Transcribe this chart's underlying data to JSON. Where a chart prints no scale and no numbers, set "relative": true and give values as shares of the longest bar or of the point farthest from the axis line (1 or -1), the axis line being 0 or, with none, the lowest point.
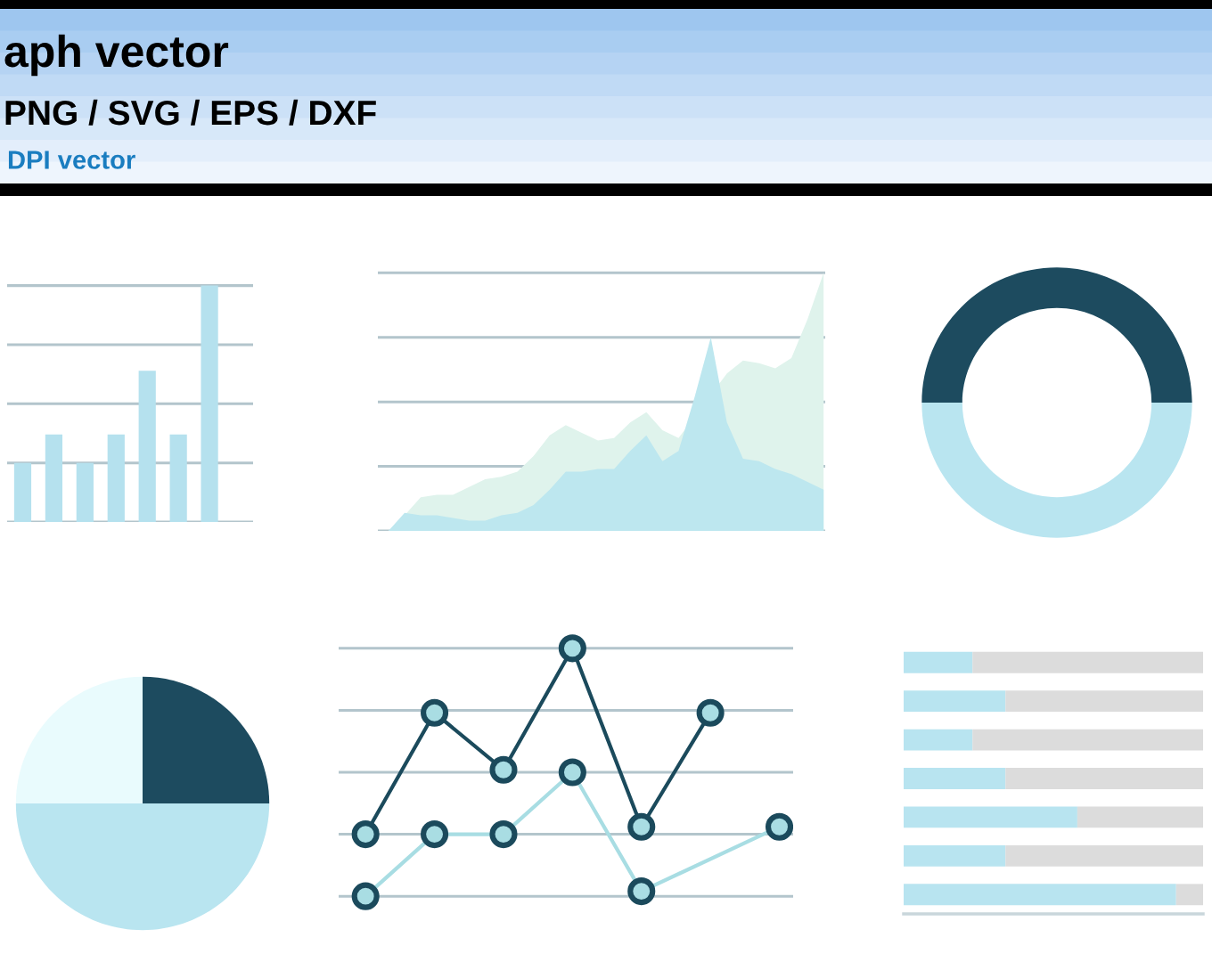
{
  "chart_data": [
    {
      "type": "other",
      "title": "aph vector",
      "subtitle": "PNG / SVG / EPS / DXF",
      "annotations": [
        "DPI vector"
      ]
    },
    {
      "type": "bar",
      "relative": true,
      "categories": [
        null,
        null,
        null,
        null,
        null,
        null,
        null
      ],
      "values": [
        0.25,
        0.37,
        0.25,
        0.37,
        0.64,
        0.37,
        1
      ],
      "color": "#b5e1ee",
      "grid": "y"
    },
    {
      "type": "area",
      "relative": true,
      "categories": [
        null,
        null,
        null,
        null,
        null,
        null,
        null,
        null,
        null,
        null,
        null,
        null,
        null,
        null,
        null,
        null,
        null,
        null,
        null,
        null,
        null,
        null,
        null,
        null,
        null,
        null,
        null,
        null
      ],
      "series": [
        {
          "color": "#dff3ec",
          "values": [
            0,
            0.06,
            0.13,
            0.14,
            0.14,
            0.17,
            0.2,
            0.21,
            0.23,
            0.29,
            0.37,
            0.41,
            0.38,
            0.35,
            0.36,
            0.42,
            0.46,
            0.39,
            0.36,
            null,
            null,
            0.61,
            0.66,
            0.65,
            0.63,
            0.67,
            0.82,
            1
          ]
        },
        {
          "color": "#bde7ef",
          "values": [
            0,
            0.07,
            0.06,
            0.06,
            0.05,
            0.04,
            0.04,
            0.06,
            0.07,
            0.1,
            0.16,
            0.23,
            0.23,
            0.24,
            0.24,
            0.31,
            0.37,
            0.27,
            0.31,
            0.52,
            0.75,
            0.42,
            0.28,
            0.27,
            0.24,
            0.22,
            0.19,
            0.16
          ]
        }
      ],
      "grid": "y"
    },
    {
      "type": "donut",
      "categories": [
        null,
        null
      ],
      "values": [
        50,
        50
      ],
      "colors": [
        "#1d4b5f",
        "#b9e5f0"
      ]
    },
    {
      "type": "pie",
      "categories": [
        null,
        null,
        null
      ],
      "values": [
        25,
        25,
        50
      ],
      "colors": [
        "#1d4b5f",
        "#e9fbfd",
        "#b9e5f0"
      ]
    },
    {
      "type": "line",
      "relative": true,
      "categories": [
        null,
        null,
        null,
        null,
        null,
        null,
        null
      ],
      "series": [
        {
          "color": "#1b4a5c",
          "values": [
            0.25,
            0.74,
            0.51,
            1,
            0.28,
            0.74,
            null
          ]
        },
        {
          "color": "#a8dde3",
          "values": [
            0,
            0.25,
            0.25,
            0.5,
            0.02,
            null,
            0.28
          ]
        }
      ],
      "grid": "y",
      "marker": "circle",
      "line_style": "solid"
    },
    {
      "type": "bar",
      "orientation": "horizontal",
      "stacked": true,
      "relative": true,
      "categories": [
        null,
        null,
        null,
        null,
        null,
        null,
        null
      ],
      "series": [
        {
          "color": "#b8e4f0",
          "values": [
            0.23,
            0.34,
            0.23,
            0.34,
            0.58,
            0.34,
            0.91
          ]
        },
        {
          "color": "#dcdcdc",
          "values": [
            0.77,
            0.66,
            0.77,
            0.66,
            0.42,
            0.66,
            0.09
          ]
        }
      ]
    }
  ]
}
